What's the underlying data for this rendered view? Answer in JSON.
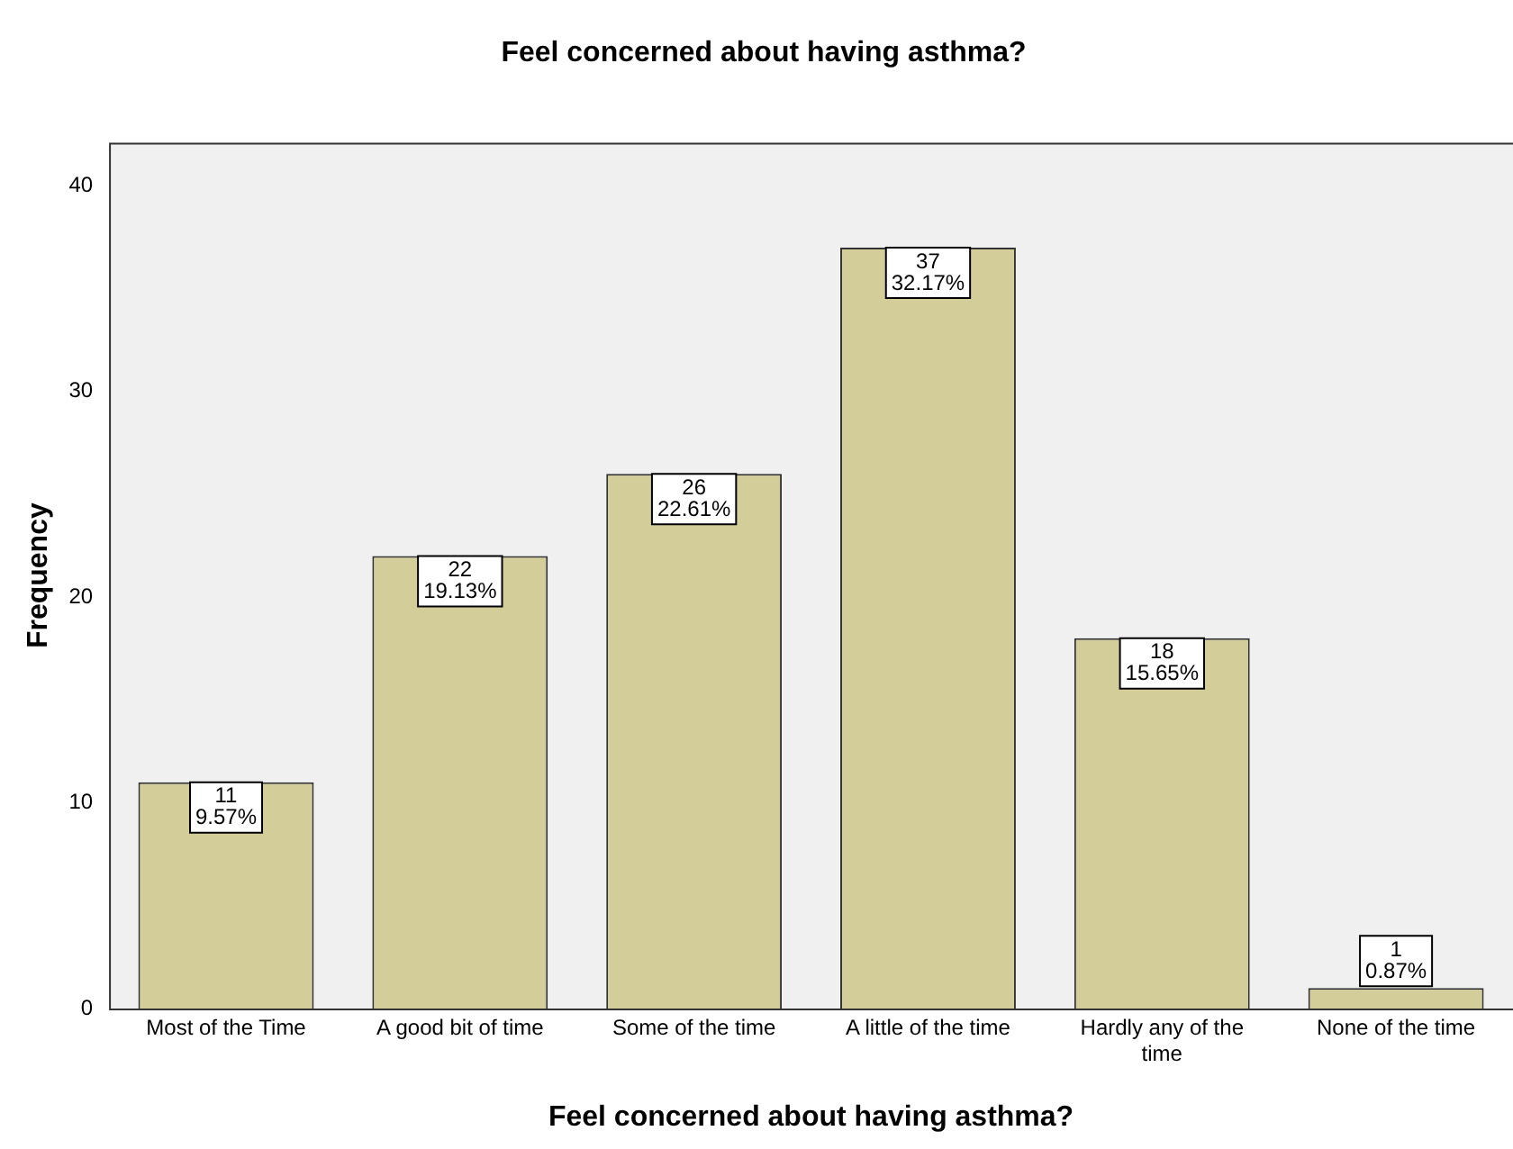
{
  "chart_data": {
    "type": "bar",
    "title": "Feel concerned about having asthma?",
    "xlabel": "Feel concerned about having asthma?",
    "ylabel": "Frequency",
    "categories": [
      "Most of the Time",
      "A good bit of time",
      "Some of the time",
      "A little of the time",
      "Hardly any of the time",
      "None of the time"
    ],
    "values": [
      11,
      22,
      26,
      37,
      18,
      1
    ],
    "value_labels": [
      "11\n9.57%",
      "22\n19.13%",
      "26\n22.61%",
      "37\n32.17%",
      "18\n15.65%",
      "1\n0.87%"
    ],
    "color": "#d3ce99",
    "ylim": [
      0,
      42.1
    ],
    "yticks": [
      0,
      10,
      20,
      30,
      40
    ],
    "grid": false,
    "legend": false
  }
}
